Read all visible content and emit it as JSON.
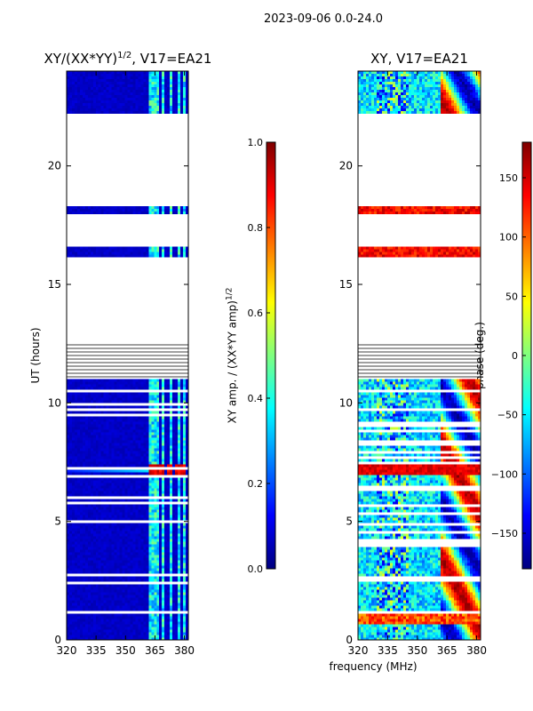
{
  "suptitle": "2023-09-06 0.0-24.0",
  "xlabel": "frequency (MHz)",
  "ylabel": "UT (hours)",
  "colors": {
    "jet": [
      "#00007f",
      "#0000ff",
      "#007fff",
      "#00ffff",
      "#7fff7f",
      "#ffff00",
      "#ff7f00",
      "#ff0000",
      "#7f0000"
    ],
    "axis": "#000000",
    "gap": "#ffffff"
  },
  "chart_data": [
    {
      "type": "heatmap",
      "title_main": "XY/(XX*YY)",
      "title_exp": "1/2",
      "title_suffix": ", V17=EA21",
      "xlabel": "frequency (MHz)",
      "ylabel": "UT (hours)",
      "xlim": [
        320,
        382
      ],
      "ylim": [
        0,
        24
      ],
      "xticks": [
        320,
        335,
        350,
        365,
        380
      ],
      "yticks": [
        0,
        5,
        10,
        15,
        20
      ],
      "colorbar": {
        "label_main": "XY amp. / (XX*YY amp)",
        "label_exp": "1/2",
        "range": [
          0.0,
          1.0
        ],
        "ticks": [
          "0.0",
          "0.2",
          "0.4",
          "0.6",
          "0.8",
          "1.0"
        ]
      },
      "background_level": 0.05,
      "bright_columns_MHz": [
        363,
        366,
        369,
        373,
        377,
        380
      ],
      "hotspot": {
        "ut_hours": 7.2,
        "freq_MHz": [
          362,
          381
        ],
        "value": 0.85
      },
      "hotspot_band": {
        "ut_hours": 7.2,
        "freq_MHz": [
          320,
          362
        ],
        "value": 0.35
      }
    },
    {
      "type": "heatmap",
      "title": "XY, V17=EA21",
      "xlabel": "frequency (MHz)",
      "ylabel": "UT (hours)",
      "xlim": [
        320,
        382
      ],
      "ylim": [
        0,
        24
      ],
      "xticks": [
        320,
        335,
        350,
        365,
        380
      ],
      "yticks": [
        0,
        5,
        10,
        15,
        20
      ],
      "colorbar": {
        "label": "phase (deg.)",
        "range": [
          -180,
          180
        ],
        "ticks": [
          "−150",
          "−100",
          "−50",
          "0",
          "50",
          "100",
          "150"
        ]
      }
    }
  ],
  "data_segments_ut": [
    [
      0.0,
      11.0
    ],
    [
      16.2,
      16.6
    ],
    [
      18.0,
      18.3
    ],
    [
      22.3,
      24.0
    ]
  ],
  "sparse_lines_ut": [
    11.1,
    11.25,
    11.4,
    11.55,
    11.7,
    11.85,
    12.0,
    12.15,
    12.3,
    12.45
  ]
}
